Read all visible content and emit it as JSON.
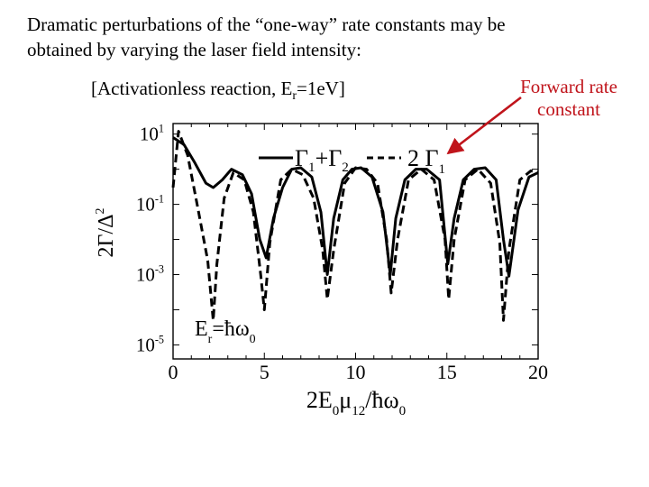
{
  "heading": {
    "line1": "Dramatic perturbations of the “one-way” rate constants may be",
    "line2": "obtained by varying the laser field intensity:"
  },
  "subtitle": {
    "prefix": "[Activationless reaction, E",
    "subscript": "r",
    "suffix": "=1eV]"
  },
  "callout": {
    "line1": "Forward rate",
    "line2": "constant",
    "color": "#c0141b"
  },
  "chart_data": {
    "type": "line",
    "xlabel": "2E₀μ₁₂/ħω₀",
    "ylabel": "2Γ/Δ²",
    "xlim": [
      0,
      20
    ],
    "ylim_log10": [
      -5.4,
      1.3
    ],
    "y_scale": "log",
    "x_ticks": [
      "0",
      "5",
      "10",
      "15",
      "20"
    ],
    "y_ticks": [
      {
        "base": "10",
        "exp": "1",
        "value": 10
      },
      {
        "base": "10",
        "exp": "-1",
        "value": 0.1
      },
      {
        "base": "10",
        "exp": "-3",
        "value": 0.001
      },
      {
        "base": "10",
        "exp": "-5",
        "value": 1e-05
      }
    ],
    "annotation": "Eᵣ=ħω₀",
    "legend_position": "top",
    "series": [
      {
        "name": "Γ₁+Γ₂",
        "style": "solid",
        "x": [
          0,
          0.6,
          1.2,
          1.8,
          2.2,
          2.7,
          3.2,
          3.8,
          4.3,
          4.75,
          5.1,
          5.5,
          6.0,
          6.5,
          7.0,
          7.6,
          8.1,
          8.45,
          8.8,
          9.3,
          9.8,
          10.3,
          10.9,
          11.5,
          11.9,
          12.2,
          12.7,
          13.3,
          13.9,
          14.6,
          15.05,
          15.4,
          15.9,
          16.5,
          17.1,
          17.7,
          18.1,
          18.4,
          18.9,
          19.5,
          20.0
        ],
        "y": [
          8,
          5,
          1.5,
          0.4,
          0.3,
          0.5,
          1.0,
          0.7,
          0.2,
          0.01,
          0.003,
          0.04,
          0.3,
          1.0,
          1.1,
          0.6,
          0.06,
          0.001,
          0.04,
          0.5,
          1.0,
          1.1,
          0.6,
          0.06,
          0.001,
          0.04,
          0.5,
          1.0,
          1.0,
          0.5,
          0.002,
          0.04,
          0.5,
          1.0,
          1.1,
          0.5,
          0.01,
          0.0009,
          0.07,
          0.6,
          0.8
        ]
      },
      {
        "name": "2 Γ₁",
        "style": "dashed",
        "x": [
          0,
          0.3,
          0.8,
          1.4,
          1.9,
          2.2,
          2.4,
          2.8,
          3.3,
          3.9,
          4.4,
          4.8,
          5.0,
          5.3,
          5.9,
          6.5,
          7.1,
          7.7,
          8.2,
          8.45,
          8.8,
          9.4,
          10.0,
          10.6,
          11.2,
          11.7,
          11.95,
          12.3,
          12.9,
          13.6,
          14.3,
          14.9,
          15.1,
          15.4,
          16.0,
          16.7,
          17.4,
          17.9,
          18.1,
          18.4,
          19.0,
          19.6,
          20.0
        ],
        "y": [
          0.3,
          12,
          2.5,
          0.06,
          0.0025,
          5e-05,
          0.002,
          0.15,
          0.8,
          0.5,
          0.06,
          0.001,
          0.0001,
          0.008,
          0.5,
          1.0,
          0.7,
          0.15,
          0.005,
          0.0002,
          0.005,
          0.4,
          1.1,
          1.0,
          0.4,
          0.01,
          0.0003,
          0.01,
          0.5,
          1.0,
          0.5,
          0.01,
          0.0002,
          0.01,
          0.5,
          1.0,
          0.4,
          0.008,
          5e-05,
          0.005,
          0.5,
          0.9,
          0.8
        ]
      }
    ]
  }
}
